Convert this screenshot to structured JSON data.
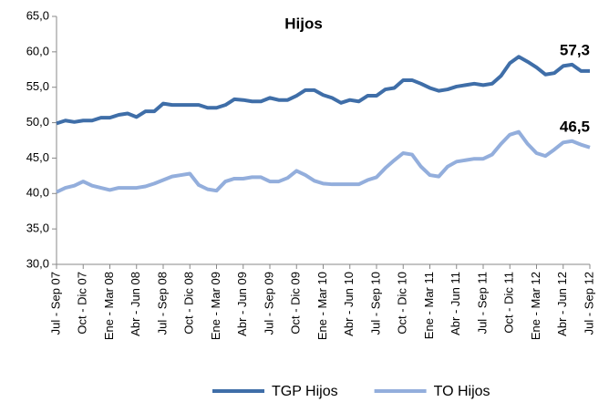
{
  "chart_data": {
    "type": "line",
    "title": "Hijos",
    "categories": [
      "Jul - Sep 07",
      null,
      null,
      "Oct - Dic 07",
      null,
      null,
      "Ene - Mar 08",
      null,
      null,
      "Abr - Jun 08",
      null,
      null,
      "Jul - Sep 08",
      null,
      null,
      "Oct - Dic 08",
      null,
      null,
      "Ene - Mar 09",
      null,
      null,
      "Abr - Jun 09",
      null,
      null,
      "Jul - Sep 09",
      null,
      null,
      "Oct - Dic 09",
      null,
      null,
      "Ene - Mar 10",
      null,
      null,
      "Abr - Jun 10",
      null,
      null,
      "Jul - Sep 10",
      null,
      null,
      "Oct - Dic 10",
      null,
      null,
      "Ene - Mar 11",
      null,
      null,
      "Abr - Jun 11",
      null,
      null,
      "Jul - Sep 11",
      null,
      null,
      "Oct - Dic 11",
      null,
      null,
      "Ene - Mar 12",
      null,
      null,
      "Abr - Jun 12",
      null,
      null,
      "Jul - Sep 12"
    ],
    "series": [
      {
        "name": "TGP Hijos",
        "color": "#3f6ea8",
        "values": [
          49.9,
          50.3,
          50.1,
          50.3,
          50.3,
          50.7,
          50.7,
          51.1,
          51.3,
          50.8,
          51.6,
          51.6,
          52.7,
          52.5,
          52.5,
          52.5,
          52.5,
          52.1,
          52.1,
          52.5,
          53.3,
          53.2,
          53.0,
          53.0,
          53.5,
          53.2,
          53.2,
          53.8,
          54.6,
          54.6,
          53.9,
          53.5,
          52.8,
          53.2,
          53.0,
          53.8,
          53.8,
          54.7,
          54.9,
          56.0,
          56.0,
          55.5,
          54.9,
          54.5,
          54.7,
          55.1,
          55.3,
          55.5,
          55.3,
          55.5,
          56.6,
          58.4,
          59.3,
          58.6,
          57.8,
          56.8,
          57.0,
          58.0,
          58.2,
          57.3,
          57.3
        ],
        "value_labels": [
          null,
          null,
          null,
          null,
          null,
          null,
          null,
          null,
          null,
          null,
          null,
          null,
          null,
          null,
          null,
          null,
          null,
          null,
          null,
          null,
          null,
          null,
          null,
          null,
          null,
          null,
          null,
          null,
          null,
          null,
          null,
          null,
          null,
          null,
          null,
          null,
          null,
          null,
          null,
          null,
          null,
          null,
          null,
          null,
          null,
          null,
          null,
          null,
          null,
          null,
          null,
          null,
          null,
          null,
          null,
          null,
          null,
          null,
          null,
          null,
          "57,3"
        ]
      },
      {
        "name": "TO Hijos",
        "color": "#93aedc",
        "values": [
          40.2,
          40.8,
          41.1,
          41.7,
          41.1,
          40.8,
          40.5,
          40.8,
          40.8,
          40.8,
          41.0,
          41.4,
          41.9,
          42.4,
          42.6,
          42.8,
          41.2,
          40.6,
          40.4,
          41.7,
          42.1,
          42.1,
          42.3,
          42.3,
          41.7,
          41.7,
          42.2,
          43.2,
          42.6,
          41.8,
          41.4,
          41.3,
          41.3,
          41.3,
          41.3,
          41.9,
          42.3,
          43.6,
          44.7,
          45.7,
          45.5,
          43.8,
          42.6,
          42.4,
          43.8,
          44.5,
          44.7,
          44.9,
          44.9,
          45.5,
          47.0,
          48.3,
          48.7,
          47.0,
          45.7,
          45.3,
          46.2,
          47.2,
          47.4,
          46.9,
          46.5
        ],
        "value_labels": [
          null,
          null,
          null,
          null,
          null,
          null,
          null,
          null,
          null,
          null,
          null,
          null,
          null,
          null,
          null,
          null,
          null,
          null,
          null,
          null,
          null,
          null,
          null,
          null,
          null,
          null,
          null,
          null,
          null,
          null,
          null,
          null,
          null,
          null,
          null,
          null,
          null,
          null,
          null,
          null,
          null,
          null,
          null,
          null,
          null,
          null,
          null,
          null,
          null,
          null,
          null,
          null,
          null,
          null,
          null,
          null,
          null,
          null,
          null,
          null,
          "46,5"
        ]
      }
    ],
    "ylim": [
      30,
      65
    ],
    "yticks": [
      {
        "value": 30,
        "label": "30,0"
      },
      {
        "value": 35,
        "label": "35,0"
      },
      {
        "value": 40,
        "label": "40,0"
      },
      {
        "value": 45,
        "label": "45,0"
      },
      {
        "value": 50,
        "label": "50,0"
      },
      {
        "value": 55,
        "label": "55,0"
      },
      {
        "value": 60,
        "label": "60,0"
      },
      {
        "value": 65,
        "label": "65,0"
      }
    ],
    "grid": false,
    "legend": "bottom"
  }
}
